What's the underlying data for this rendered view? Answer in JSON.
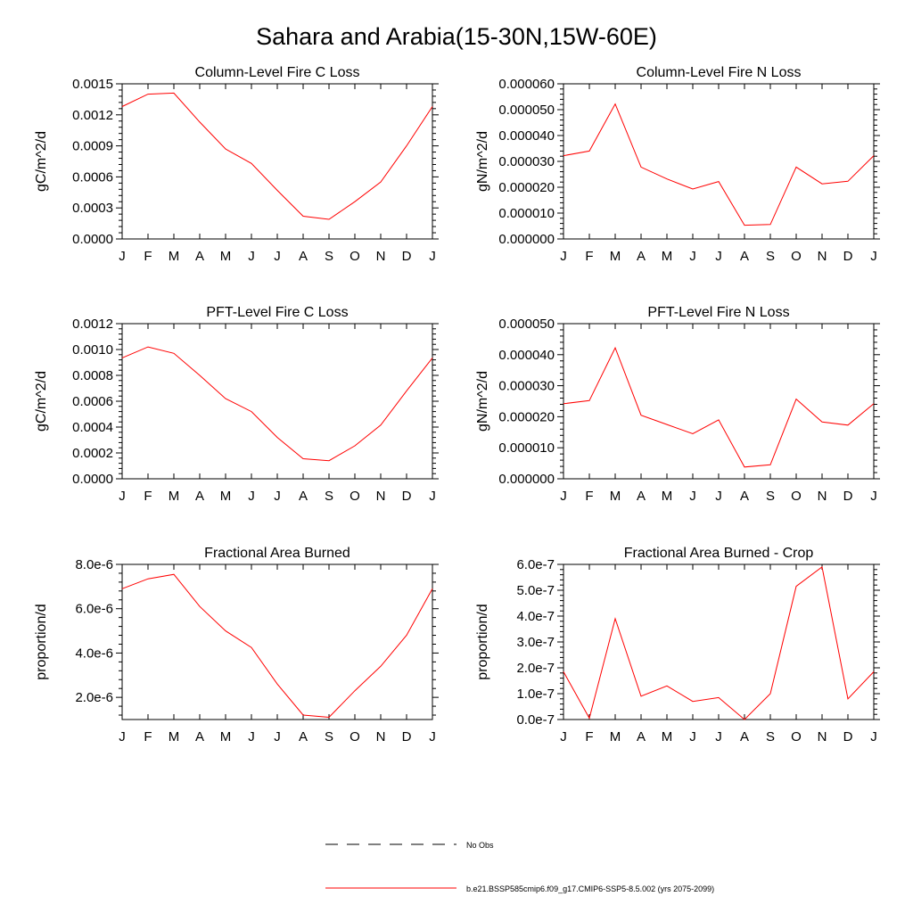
{
  "figure": {
    "title": "Sahara and Arabia(15-30N,15W-60E)"
  },
  "colors": {
    "series": "#ff0000",
    "axis": "#000000",
    "obs": "#000000"
  },
  "chart_data": [
    {
      "type": "line",
      "title": "Column-Level Fire C Loss",
      "ylabel": "gC/m^2/d",
      "x": [
        "J",
        "F",
        "M",
        "A",
        "M",
        "J",
        "J",
        "A",
        "S",
        "O",
        "N",
        "D",
        "J"
      ],
      "ylim": [
        0,
        0.0015
      ],
      "yticks": [
        0,
        0.0003,
        0.0006,
        0.0009,
        0.0012,
        0.0015
      ],
      "yticklabels": [
        "0.0000",
        "0.0003",
        "0.0006",
        "0.0009",
        "0.0012",
        "0.0015"
      ],
      "series": [
        {
          "values": [
            0.00128,
            0.0014,
            0.00141,
            0.00113,
            0.00087,
            0.00073,
            0.00047,
            0.00022,
            0.00019,
            0.00036,
            0.00055,
            0.0009,
            0.00128
          ]
        }
      ]
    },
    {
      "type": "line",
      "title": "Column-Level Fire N Loss",
      "ylabel": "gN/m^2/d",
      "x": [
        "J",
        "F",
        "M",
        "A",
        "M",
        "J",
        "J",
        "A",
        "S",
        "O",
        "N",
        "D",
        "J"
      ],
      "ylim": [
        0,
        6e-05
      ],
      "yticks": [
        0,
        1e-05,
        2e-05,
        3e-05,
        4e-05,
        5e-05,
        6e-05
      ],
      "yticklabels": [
        "0.000000",
        "0.000010",
        "0.000020",
        "0.000030",
        "0.000040",
        "0.000050",
        "0.000060"
      ],
      "series": [
        {
          "values": [
            3.22e-05,
            3.4e-05,
            5.22e-05,
            2.78e-05,
            2.32e-05,
            1.93e-05,
            2.22e-05,
            5.3e-06,
            5.6e-06,
            2.78e-05,
            2.13e-05,
            2.23e-05,
            3.22e-05
          ]
        }
      ]
    },
    {
      "type": "line",
      "title": "PFT-Level Fire C Loss",
      "ylabel": "gC/m^2/d",
      "x": [
        "J",
        "F",
        "M",
        "A",
        "M",
        "J",
        "J",
        "A",
        "S",
        "O",
        "N",
        "D",
        "J"
      ],
      "ylim": [
        0,
        0.0012
      ],
      "yticks": [
        0,
        0.0002,
        0.0004,
        0.0006,
        0.0008,
        0.001,
        0.0012
      ],
      "yticklabels": [
        "0.0000",
        "0.0002",
        "0.0004",
        "0.0006",
        "0.0008",
        "0.0010",
        "0.0012"
      ],
      "series": [
        {
          "values": [
            0.000935,
            0.00102,
            0.00097,
            0.0008,
            0.00062,
            0.00052,
            0.00032,
            0.000155,
            0.00014,
            0.000255,
            0.000415,
            0.00068,
            0.000935
          ]
        }
      ]
    },
    {
      "type": "line",
      "title": "PFT-Level Fire N Loss",
      "ylabel": "gN/m^2/d",
      "x": [
        "J",
        "F",
        "M",
        "A",
        "M",
        "J",
        "J",
        "A",
        "S",
        "O",
        "N",
        "D",
        "J"
      ],
      "ylim": [
        0,
        5e-05
      ],
      "yticks": [
        0,
        1e-05,
        2e-05,
        3e-05,
        4e-05,
        5e-05
      ],
      "yticklabels": [
        "0.000000",
        "0.000010",
        "0.000020",
        "0.000030",
        "0.000040",
        "0.000050"
      ],
      "series": [
        {
          "values": [
            2.42e-05,
            2.52e-05,
            4.22e-05,
            2.05e-05,
            1.75e-05,
            1.45e-05,
            1.9e-05,
            3.8e-06,
            4.5e-06,
            2.57e-05,
            1.83e-05,
            1.73e-05,
            2.42e-05
          ]
        }
      ]
    },
    {
      "type": "line",
      "title": "Fractional Area Burned",
      "ylabel": "proportion/d",
      "x": [
        "J",
        "F",
        "M",
        "A",
        "M",
        "J",
        "J",
        "A",
        "S",
        "O",
        "N",
        "D",
        "J"
      ],
      "ylim": [
        1e-06,
        8e-06
      ],
      "yticks": [
        2e-06,
        4e-06,
        6e-06,
        8e-06
      ],
      "yticklabels": [
        "2.0e-6",
        "4.0e-6",
        "6.0e-6",
        "8.0e-6"
      ],
      "series": [
        {
          "values": [
            6.9e-06,
            7.35e-06,
            7.55e-06,
            6.1e-06,
            5e-06,
            4.25e-06,
            2.6e-06,
            1.2e-06,
            1.1e-06,
            2.3e-06,
            3.4e-06,
            4.8e-06,
            6.9e-06
          ]
        }
      ]
    },
    {
      "type": "line",
      "title": "Fractional Area Burned - Crop",
      "ylabel": "proportion/d",
      "x": [
        "J",
        "F",
        "M",
        "A",
        "M",
        "J",
        "J",
        "A",
        "S",
        "O",
        "N",
        "D",
        "J"
      ],
      "ylim": [
        0,
        6e-07
      ],
      "yticks": [
        0,
        1e-07,
        2e-07,
        3e-07,
        4e-07,
        5e-07,
        6e-07
      ],
      "yticklabels": [
        "0.0e-7",
        "1.0e-7",
        "2.0e-7",
        "3.0e-7",
        "4.0e-7",
        "5.0e-7",
        "6.0e-7"
      ],
      "series": [
        {
          "values": [
            1.85e-07,
            5e-09,
            3.9e-07,
            9e-08,
            1.3e-07,
            7e-08,
            8.5e-08,
            0.0,
            1e-07,
            5.15e-07,
            5.9e-07,
            8e-08,
            1.85e-07
          ]
        }
      ]
    }
  ],
  "legend": {
    "obs_label": "No Obs",
    "model_label": "b.e21.BSSP585cmip6.f09_g17.CMIP6-SSP5-8.5.002 (yrs 2075-2099)"
  }
}
